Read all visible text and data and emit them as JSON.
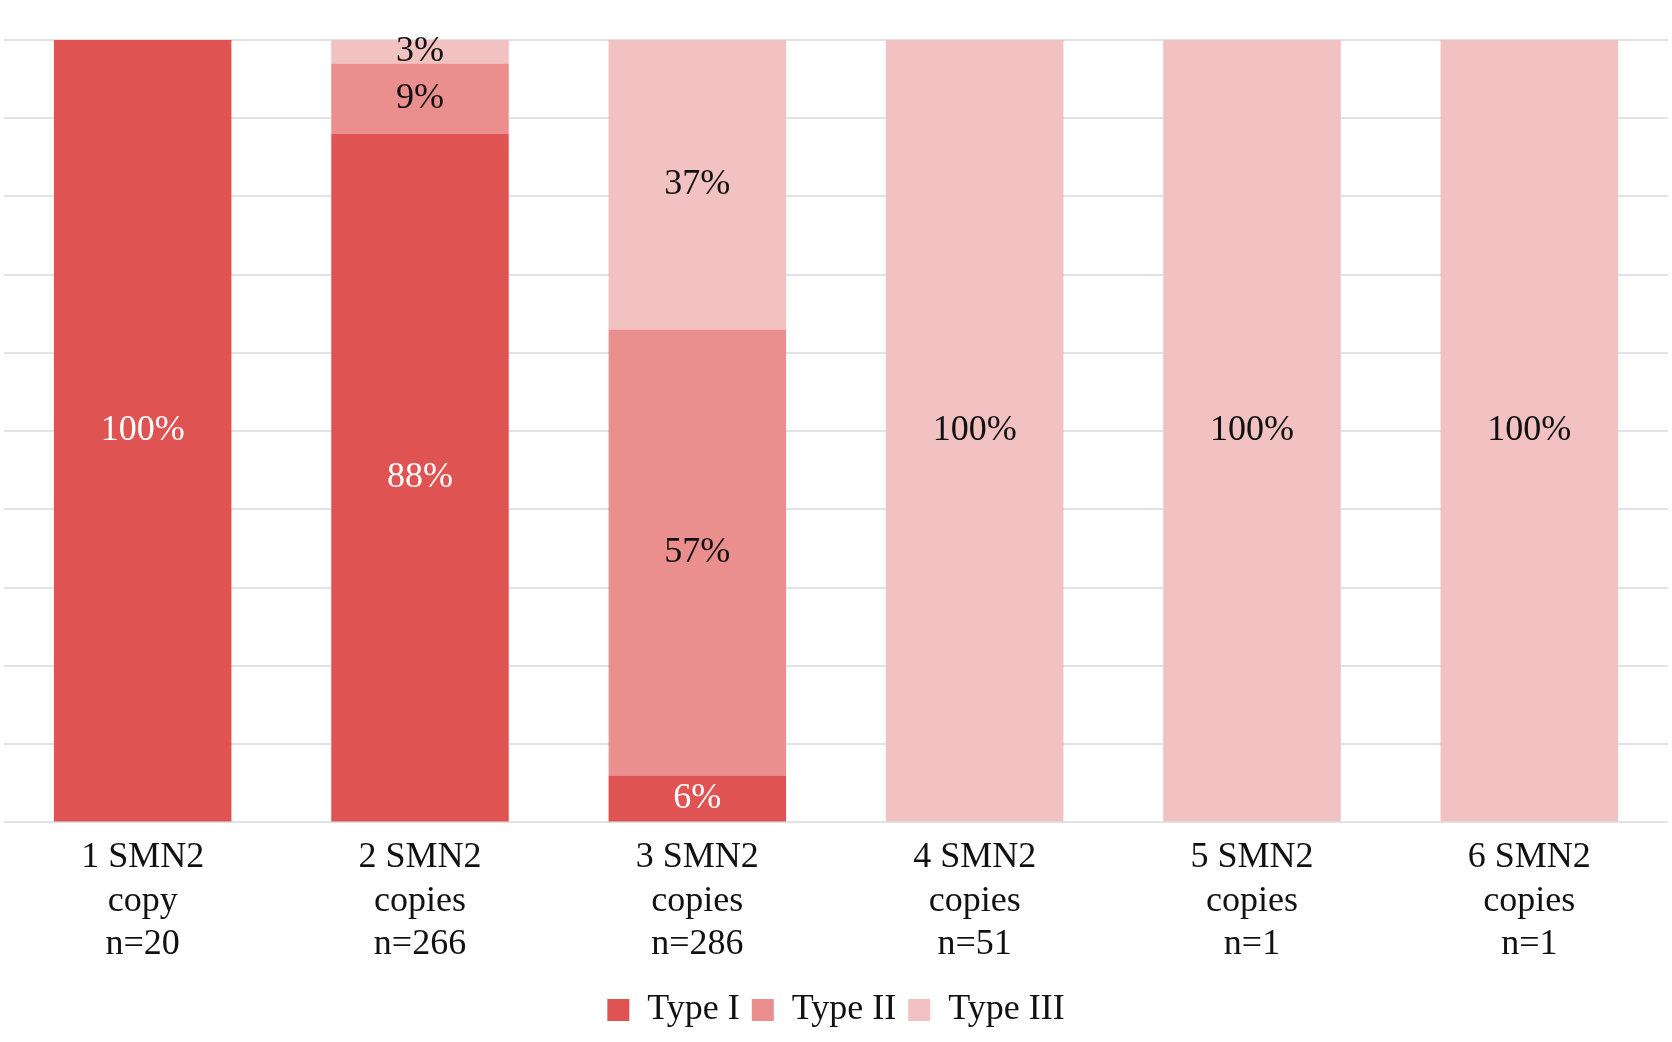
{
  "chart_data": {
    "type": "bar",
    "stacked": true,
    "categories": [
      "1 SMN2\ncopy\nn=20",
      "2 SMN2\ncopies\nn=266",
      "3 SMN2\ncopies\nn=286",
      "4 SMN2\ncopies\nn=51",
      "5 SMN2\ncopies\nn=1",
      "6 SMN2\ncopies\nn=1"
    ],
    "series": [
      {
        "name": "Type I",
        "color": "#e05353",
        "values": [
          100,
          88,
          6,
          null,
          null,
          null
        ],
        "value_labels": [
          "100%",
          "88%",
          "6%",
          null,
          null,
          null
        ]
      },
      {
        "name": "Type II",
        "color": "#eb8e8e",
        "values": [
          null,
          9,
          57,
          null,
          null,
          null
        ],
        "value_labels": [
          null,
          "9%",
          "57%",
          null,
          null,
          null
        ]
      },
      {
        "name": "Type III",
        "color": "#f2c1c1",
        "values": [
          null,
          3,
          37,
          100,
          100,
          100
        ],
        "value_labels": [
          null,
          "3%",
          "37%",
          "100%",
          "100%",
          "100%"
        ]
      }
    ],
    "ylim": [
      0,
      100
    ],
    "yticks": [
      {
        "value": 0,
        "label": null
      },
      {
        "value": 10,
        "label": null
      },
      {
        "value": 20,
        "label": null
      },
      {
        "value": 30,
        "label": null
      },
      {
        "value": 40,
        "label": null
      },
      {
        "value": 50,
        "label": null
      },
      {
        "value": 60,
        "label": null
      },
      {
        "value": 70,
        "label": null
      },
      {
        "value": 80,
        "label": null
      },
      {
        "value": 90,
        "label": null
      },
      {
        "value": 100,
        "label": null
      }
    ],
    "tick_labels": "x",
    "grid": "y",
    "legend": "bottom"
  }
}
